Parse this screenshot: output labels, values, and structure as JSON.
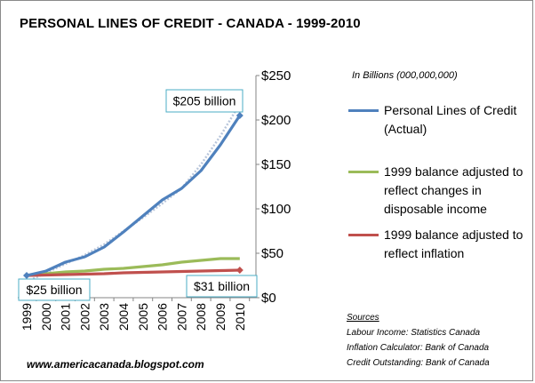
{
  "chart_data": {
    "type": "line",
    "title": "PERSONAL LINES OF CREDIT - CANADA - 1999-2010",
    "units_note": "In Billions (000,000,000)",
    "categories": [
      "1999",
      "2000",
      "2001",
      "2002",
      "2003",
      "2004",
      "2005",
      "2006",
      "2007",
      "2008",
      "2009",
      "2010"
    ],
    "y_ticks": [
      "$0",
      "$50",
      "$100",
      "$150",
      "$200",
      "$250"
    ],
    "ylim": [
      0,
      250
    ],
    "grid": false,
    "legend_position": "right",
    "series": [
      {
        "name": "Personal Lines of Credit (Actual)",
        "color": "#4f81bd",
        "values": [
          25,
          30,
          40,
          46,
          57,
          74,
          92,
          110,
          123,
          143,
          172,
          205
        ]
      },
      {
        "name": "1999 balance adjusted to reflect changes in disposable income",
        "color": "#9bbb59",
        "values": [
          25,
          27,
          29,
          30,
          32,
          33,
          35,
          37,
          40,
          42,
          44,
          44
        ]
      },
      {
        "name": "1999 balance adjusted to reflect inflation",
        "color": "#c0504d",
        "values": [
          25,
          25.5,
          26,
          26.5,
          27,
          28,
          28.5,
          29,
          29.5,
          30,
          30.5,
          31
        ]
      }
    ],
    "trendline": {
      "color": "#b9c6db",
      "values": [
        18,
        28,
        38,
        48,
        60,
        75,
        90,
        106,
        123,
        150,
        182,
        218
      ]
    },
    "annotations": [
      {
        "text": "$205 billion",
        "series": 0,
        "point": 11
      },
      {
        "text": "$25 billion",
        "series": 0,
        "point": 0
      },
      {
        "text": "$31 billion",
        "series": 2,
        "point": 11
      }
    ]
  },
  "sources": {
    "heading": "Sources",
    "lines": [
      "Labour Income:  Statistics  Canada",
      "Inflation Calculator:  Bank of Canada",
      "Credit Outstanding:  Bank of Canada"
    ]
  },
  "website": "www.americacanada.blogspot.com"
}
